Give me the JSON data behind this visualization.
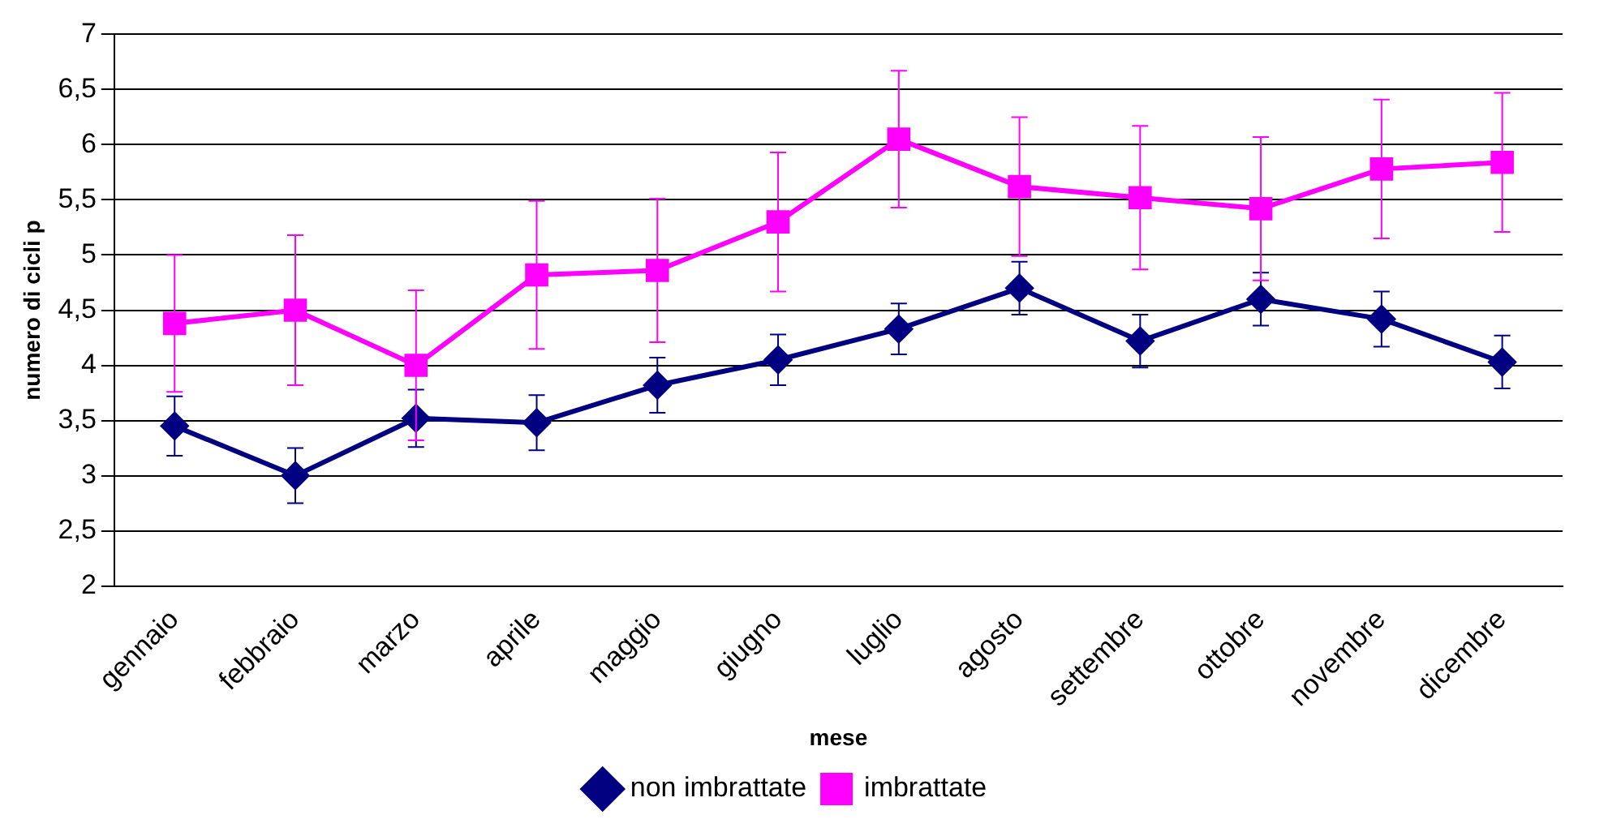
{
  "chart_data": {
    "type": "line",
    "xlabel": "mese",
    "ylabel": "numero di cicli p",
    "categories": [
      "gennaio",
      "febbraio",
      "marzo",
      "aprile",
      "maggio",
      "giugno",
      "luglio",
      "agosto",
      "settembre",
      "ottobre",
      "novembre",
      "dicembre"
    ],
    "series": [
      {
        "name": "non imbrattate",
        "color": "#000080",
        "marker": "diamond",
        "values": [
          3.45,
          3.0,
          3.52,
          3.48,
          3.82,
          4.05,
          4.33,
          4.7,
          4.22,
          4.6,
          4.42,
          4.03
        ],
        "errors": [
          0.27,
          0.25,
          0.26,
          0.25,
          0.25,
          0.23,
          0.23,
          0.24,
          0.24,
          0.24,
          0.25,
          0.24
        ]
      },
      {
        "name": "imbrattate",
        "color": "#ff00ff",
        "marker": "square",
        "values": [
          4.38,
          4.5,
          4.0,
          4.82,
          4.86,
          5.3,
          6.05,
          5.62,
          5.52,
          5.42,
          5.78,
          5.84
        ],
        "errors": [
          0.62,
          0.68,
          0.68,
          0.67,
          0.65,
          0.63,
          0.62,
          0.63,
          0.65,
          0.65,
          0.63,
          0.63
        ]
      }
    ],
    "ylim": [
      2,
      7
    ],
    "yticks": [
      2,
      {
        "value": 2.5,
        "label": "2,5"
      },
      3,
      {
        "value": 3.5,
        "label": "3,5"
      },
      4,
      {
        "value": 4.5,
        "label": "4,5"
      },
      5,
      {
        "value": 5.5,
        "label": "5,5"
      },
      6,
      {
        "value": 6.5,
        "label": "6,5"
      },
      7
    ],
    "grid": "y",
    "legend": "bottom",
    "line_style": "solid"
  }
}
